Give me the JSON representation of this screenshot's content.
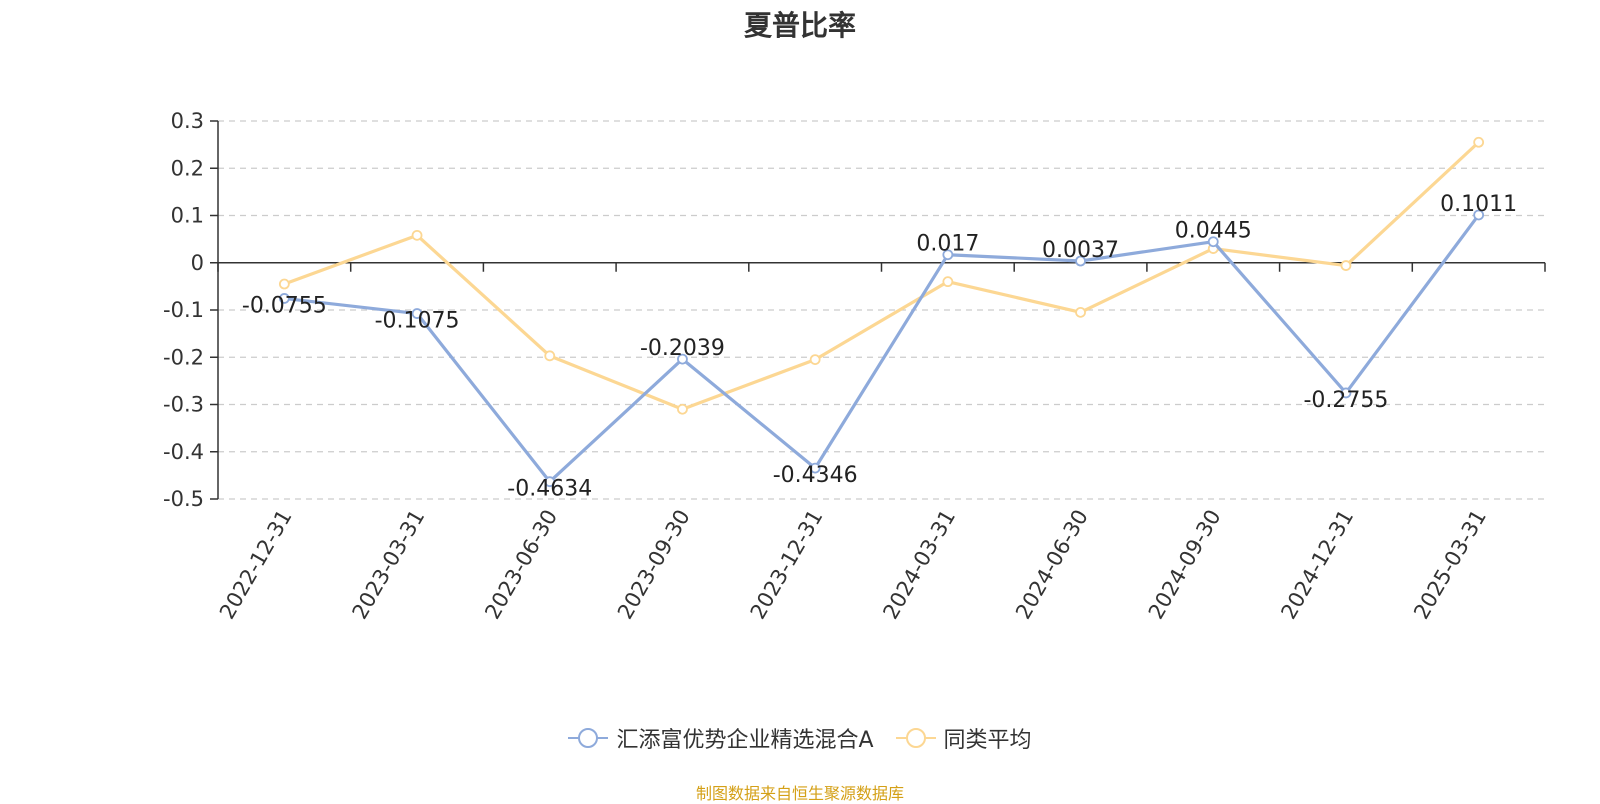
{
  "chart_data": {
    "type": "line",
    "title": "夏普比率",
    "categories": [
      "2022-12-31",
      "2023-03-31",
      "2023-06-30",
      "2023-09-30",
      "2023-12-31",
      "2024-03-31",
      "2024-06-30",
      "2024-09-30",
      "2024-12-31",
      "2025-03-31"
    ],
    "series": [
      {
        "name": "汇添富优势企业精选混合A",
        "color": "#8eaadb",
        "values": [
          -0.0755,
          -0.1075,
          -0.4634,
          -0.2039,
          -0.4346,
          0.017,
          0.0037,
          0.0445,
          -0.2755,
          0.1011
        ],
        "labels": [
          "-0.0755",
          "-0.1075",
          "-0.4634",
          "-0.2039",
          "-0.4346",
          "0.017",
          "0.0037",
          "0.0445",
          "-0.2755",
          "0.1011"
        ],
        "show_labels": true
      },
      {
        "name": "同类平均",
        "color": "#fcd793",
        "values": [
          -0.045,
          0.058,
          -0.197,
          -0.31,
          -0.205,
          -0.04,
          -0.105,
          0.03,
          -0.006,
          0.255
        ],
        "show_labels": false
      }
    ],
    "ylim": [
      -0.5,
      0.3
    ],
    "yticks": [
      0.3,
      0.2,
      0.1,
      0,
      -0.1,
      -0.2,
      -0.3,
      -0.4,
      -0.5
    ],
    "ytick_labels": [
      "0.3",
      "0.2",
      "0.1",
      "0",
      "-0.1",
      "-0.2",
      "-0.3",
      "-0.4",
      "-0.5"
    ],
    "grid": "horizontal-dashed",
    "legend_position": "bottom-center"
  },
  "source_note": "制图数据来自恒生聚源数据库"
}
